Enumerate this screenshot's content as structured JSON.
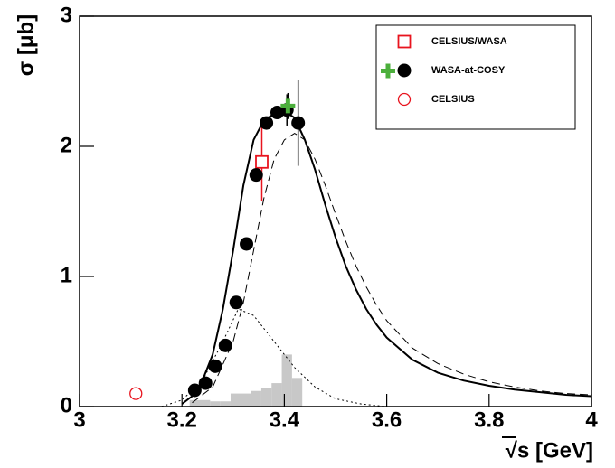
{
  "chart_data": {
    "type": "line",
    "ylabel": "σ [μb]",
    "xlabel": "√s [GeV]",
    "xlim": [
      3,
      4
    ],
    "ylim": [
      0,
      3
    ],
    "xticks": [
      3,
      3.2,
      3.4,
      3.6,
      3.8,
      4
    ],
    "yticks": [
      0,
      1,
      2,
      3
    ],
    "histogram": {
      "bins": [
        3.215,
        3.235,
        3.255,
        3.275,
        3.295,
        3.315,
        3.335,
        3.355,
        3.375,
        3.395,
        3.415,
        3.435
      ],
      "counts": [
        0.05,
        0.05,
        0.04,
        0.04,
        0.1,
        0.1,
        0.12,
        0.14,
        0.18,
        0.4,
        0.22
      ],
      "color": "#c8c8c8"
    },
    "series": [
      {
        "style": "solid",
        "color": "#000000",
        "x": [
          3.2,
          3.22,
          3.24,
          3.26,
          3.28,
          3.3,
          3.32,
          3.34,
          3.36,
          3.38,
          3.4,
          3.42,
          3.44,
          3.46,
          3.48,
          3.5,
          3.52,
          3.54,
          3.56,
          3.58,
          3.6,
          3.65,
          3.7,
          3.75,
          3.8,
          3.85,
          3.9,
          3.95,
          4
        ],
        "values": [
          0.02,
          0.08,
          0.2,
          0.4,
          0.75,
          1.2,
          1.7,
          2.05,
          2.2,
          2.25,
          2.27,
          2.22,
          2.05,
          1.82,
          1.55,
          1.3,
          1.08,
          0.9,
          0.75,
          0.63,
          0.53,
          0.36,
          0.26,
          0.2,
          0.16,
          0.13,
          0.11,
          0.09,
          0.08
        ]
      },
      {
        "style": "dashed",
        "color": "#000000",
        "x": [
          3.22,
          3.26,
          3.3,
          3.32,
          3.34,
          3.36,
          3.38,
          3.4,
          3.42,
          3.44,
          3.46,
          3.48,
          3.5,
          3.52,
          3.54,
          3.56,
          3.58,
          3.6,
          3.65,
          3.7,
          3.75,
          3.8,
          3.85,
          3.9,
          3.95,
          4
        ],
        "values": [
          0.03,
          0.15,
          0.5,
          0.8,
          1.2,
          1.6,
          1.9,
          2.05,
          2.1,
          2.05,
          1.9,
          1.7,
          1.48,
          1.27,
          1.08,
          0.92,
          0.78,
          0.66,
          0.45,
          0.33,
          0.25,
          0.19,
          0.15,
          0.12,
          0.1,
          0.09
        ]
      },
      {
        "style": "dotted",
        "color": "#000000",
        "x": [
          3.16,
          3.2,
          3.24,
          3.28,
          3.31,
          3.34,
          3.38,
          3.42,
          3.46,
          3.5,
          3.55,
          3.6
        ],
        "values": [
          0,
          0.05,
          0.2,
          0.5,
          0.75,
          0.7,
          0.5,
          0.3,
          0.15,
          0.06,
          0.02,
          0
        ]
      },
      {
        "name": "CELSIUS/WASA",
        "marker": "open-square",
        "color": "#e8141e",
        "x": [
          3.356
        ],
        "values": [
          1.88
        ],
        "errors": [
          0.3
        ]
      },
      {
        "name": "WASA-at-COSY",
        "marker": "circle",
        "color": "#000000",
        "x": [
          3.225,
          3.246,
          3.265,
          3.285,
          3.306,
          3.326,
          3.345,
          3.365,
          3.386,
          3.405,
          3.427
        ],
        "values": [
          0.125,
          0.18,
          0.31,
          0.47,
          0.8,
          1.25,
          1.78,
          2.18,
          2.26,
          2.28,
          2.18
        ],
        "errors": [
          null,
          null,
          null,
          null,
          null,
          null,
          null,
          null,
          null,
          0.12,
          0.33
        ]
      },
      {
        "marker": "cross",
        "color": "#4caf3c",
        "x": [
          3.407
        ],
        "values": [
          2.31
        ],
        "errors": [
          0.1
        ]
      },
      {
        "name": "CELSIUS",
        "marker": "open-circle",
        "color": "#e8141e",
        "x": [
          3.11
        ],
        "values": [
          0.1
        ]
      }
    ]
  }
}
